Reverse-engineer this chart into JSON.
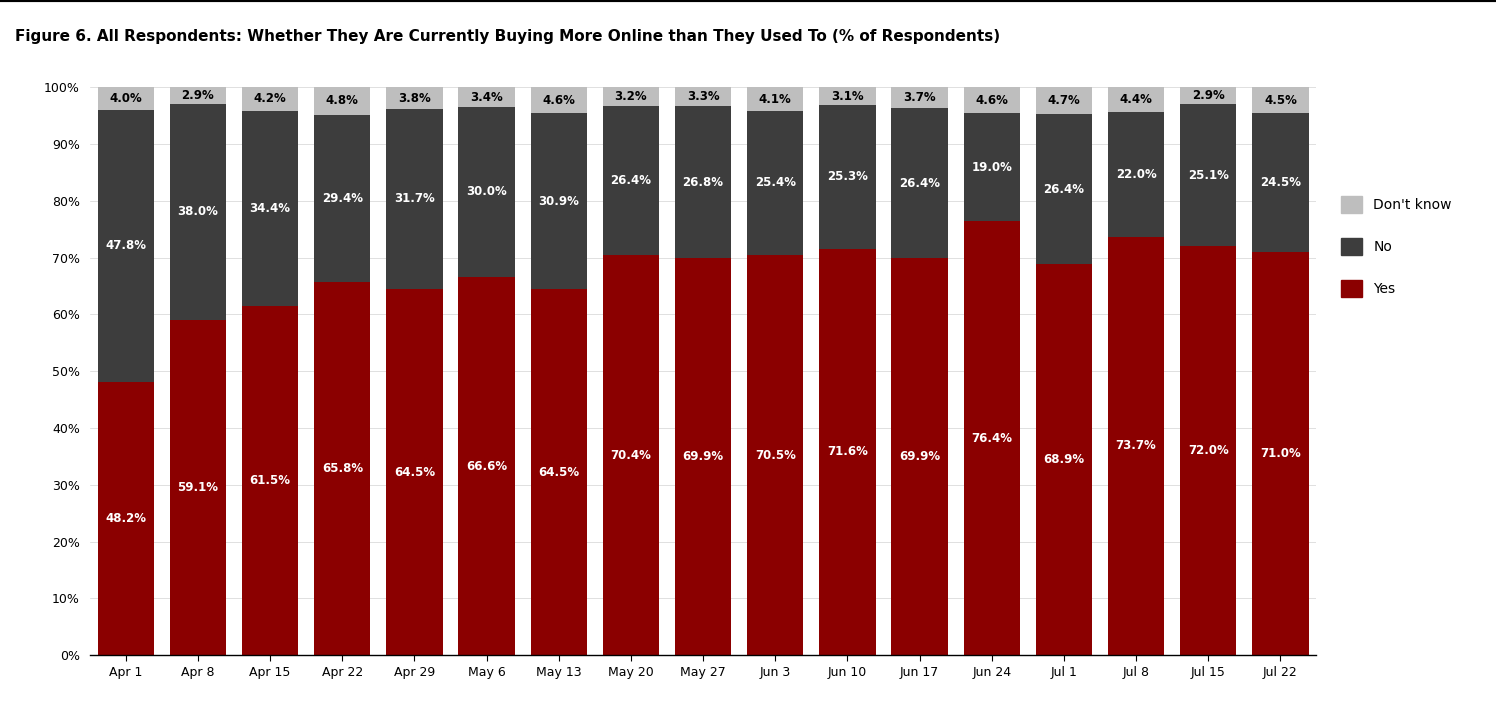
{
  "categories": [
    "Apr 1",
    "Apr 8",
    "Apr 15",
    "Apr 22",
    "Apr 29",
    "May 6",
    "May 13",
    "May 20",
    "May 27",
    "Jun 3",
    "Jun 10",
    "Jun 17",
    "Jun 24",
    "Jul 1",
    "Jul 8",
    "Jul 15",
    "Jul 22"
  ],
  "yes": [
    48.2,
    59.1,
    61.5,
    65.8,
    64.5,
    66.6,
    64.5,
    70.4,
    69.9,
    70.5,
    71.6,
    69.9,
    76.4,
    68.9,
    73.7,
    72.0,
    71.0
  ],
  "no": [
    47.8,
    38.0,
    34.4,
    29.4,
    31.7,
    30.0,
    30.9,
    26.4,
    26.8,
    25.4,
    25.3,
    26.4,
    19.0,
    26.4,
    22.0,
    25.1,
    24.5
  ],
  "dk": [
    4.0,
    2.9,
    4.2,
    4.8,
    3.8,
    3.4,
    4.6,
    3.2,
    3.3,
    4.1,
    3.1,
    3.7,
    4.6,
    4.7,
    4.4,
    2.9,
    4.5
  ],
  "color_yes": "#8B0000",
  "color_no": "#3d3d3d",
  "color_dk": "#BEBEBE",
  "title": "Figure 6. All Respondents: Whether They Are Currently Buying More Online than They Used To (% of Respondents)",
  "ylabel_ticks": [
    "0%",
    "10%",
    "20%",
    "30%",
    "40%",
    "50%",
    "60%",
    "70%",
    "80%",
    "90%",
    "100%"
  ],
  "title_fontsize": 11,
  "tick_fontsize": 9,
  "label_fontsize": 8.5
}
